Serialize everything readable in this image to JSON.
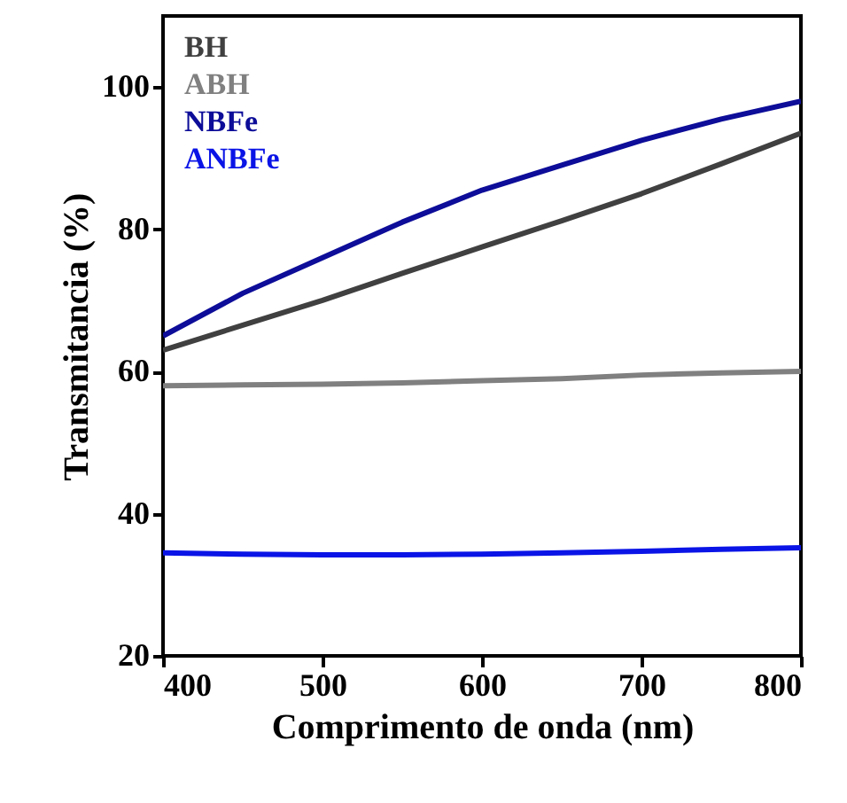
{
  "chart_data": {
    "type": "line",
    "xlabel": "Comprimento de onda (nm)",
    "ylabel": "Transmitancia (%)",
    "xlim": [
      400,
      800
    ],
    "xticks": [
      400,
      500,
      600,
      700,
      800
    ],
    "ylim": [
      20,
      110
    ],
    "yticks": [
      20,
      40,
      60,
      80,
      100
    ],
    "legend": "top left",
    "grid": false,
    "marker": "none",
    "line_style": "solid",
    "series": [
      {
        "name": "BH",
        "color": "#404040",
        "x": [
          400,
          450,
          500,
          550,
          600,
          650,
          700,
          750,
          800
        ],
        "values": [
          63,
          66.5,
          70,
          73.8,
          77.5,
          81.2,
          85,
          89.2,
          93.5
        ]
      },
      {
        "name": "ABH",
        "color": "#808080",
        "x": [
          400,
          450,
          500,
          550,
          600,
          650,
          700,
          750,
          800
        ],
        "values": [
          58,
          58.1,
          58.2,
          58.4,
          58.7,
          59,
          59.5,
          59.8,
          60
        ]
      },
      {
        "name": "NBFe",
        "color": "#0d0d99",
        "x": [
          400,
          450,
          500,
          550,
          600,
          650,
          700,
          750,
          800
        ],
        "values": [
          65,
          71,
          76,
          81,
          85.5,
          89,
          92.5,
          95.5,
          98
        ]
      },
      {
        "name": "ANBFe",
        "color": "#0a14e6",
        "x": [
          400,
          450,
          500,
          550,
          600,
          650,
          700,
          750,
          800
        ],
        "values": [
          34.5,
          34.3,
          34.2,
          34.2,
          34.3,
          34.5,
          34.7,
          35,
          35.2
        ]
      }
    ]
  }
}
